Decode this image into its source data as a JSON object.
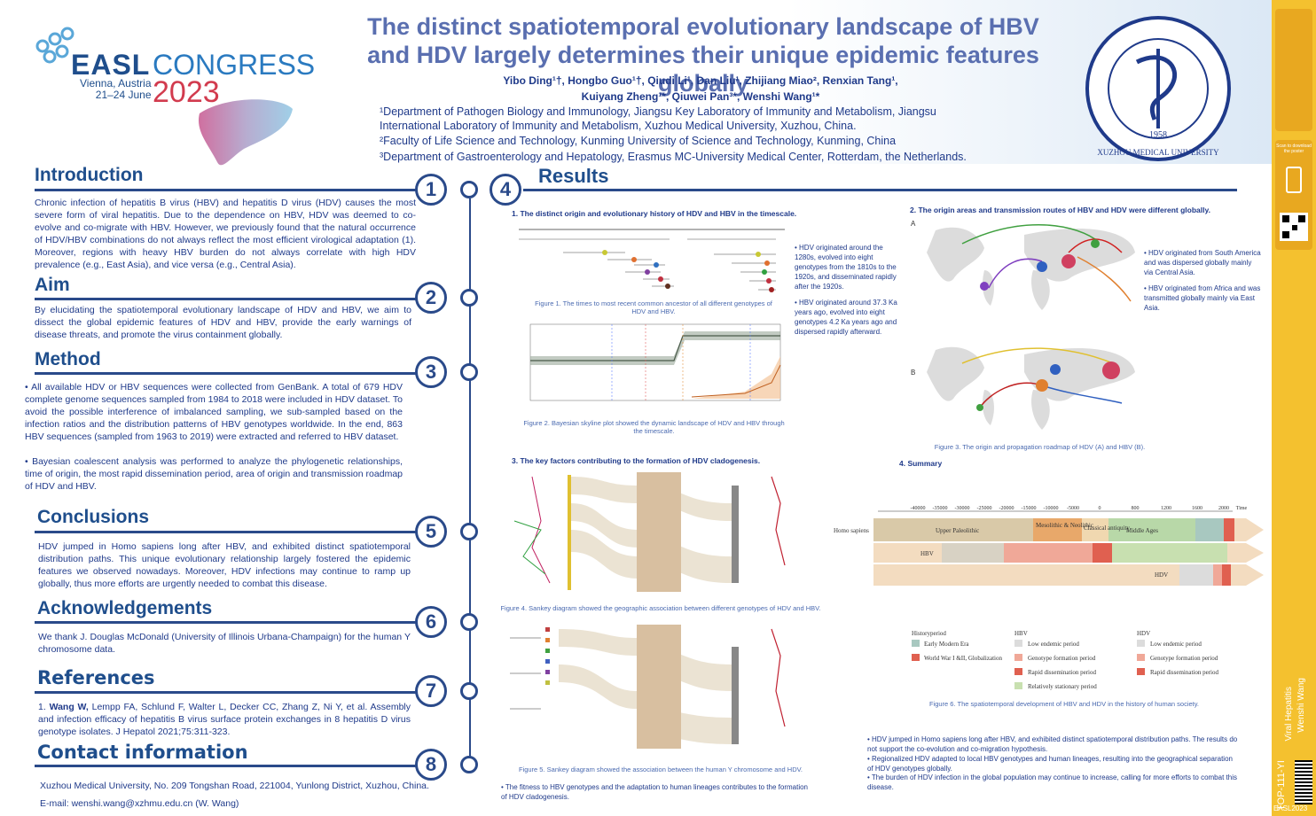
{
  "header": {
    "title": "The distinct spatiotemporal evolutionary landscape of HBV and HDV largely determines their unique epidemic features globally",
    "authors_line1": "Yibo Ding¹†, Hongbo Guo¹†, Qiudi Li¹, Dan Liu¹, Zhijiang Miao², Renxian Tang¹,",
    "authors_line2": "Kuiyang Zheng¹*, Qiuwei Pan³*, Wenshi Wang¹*",
    "affil1": "¹Department of Pathogen Biology and Immunology, Jiangsu Key Laboratory of Immunity and Metabolism, Jiangsu International Laboratory of Immunity and Metabolism, Xuzhou Medical University, Xuzhou, China.",
    "affil2": "²Faculty of Life Science and Technology, Kunming University of Science and Technology, Kunming, China",
    "affil3": "³Department of Gastroenterology and Hepatology, Erasmus MC-University Medical Center, Rotterdam, the Netherlands."
  },
  "logo": {
    "easl": "EASL",
    "congress": "CONGRESS",
    "city": "Vienna, Austria",
    "dates": "21–24 June",
    "year": "2023",
    "seal_text": "XUZHOU MEDICAL UNIVERSITY",
    "seal_year": "1958"
  },
  "sections": {
    "introduction": {
      "title": "Introduction",
      "number": "1",
      "text": "Chronic infection of hepatitis B virus (HBV) and hepatitis D virus (HDV) causes the most severe form of viral hepatitis. Due to the dependence on HBV, HDV was deemed to co-evolve and co-migrate with HBV. However, we previously found that the natural occurrence of HDV/HBV combinations do not always reflect the most efficient virological adaptation (1). Moreover, regions with heavy HBV burden do not always correlate with high HDV prevalence (e.g., East Asia), and vice versa (e.g., Central Asia)."
    },
    "aim": {
      "title": "Aim",
      "number": "2",
      "text": "By elucidating the spatiotemporal evolutionary landscape of HDV and HBV, we aim to dissect the global epidemic features of HDV and HBV, provide the early warnings of disease threats, and promote the virus containment globally."
    },
    "method": {
      "title": "Method",
      "number": "3",
      "bullet1": "All available HDV or HBV sequences were collected from GenBank. A total of 679 HDV complete genome sequences sampled from 1984 to 2018 were included in HDV dataset. To avoid the possible interference of imbalanced sampling, we sub-sampled based on the infection ratios and the distribution patterns of HBV genotypes worldwide. In the end, 863 HBV sequences (sampled from 1963 to 2019) were extracted and referred to HBV dataset.",
      "bullet2": "Bayesian coalescent analysis was performed to analyze the phylogenetic relationships, time of origin, the most rapid dissemination period, area of origin and transmission roadmap of HDV and HBV."
    },
    "conclusions": {
      "title": "Conclusions",
      "number": "5",
      "text": "HDV jumped in Homo sapiens long after HBV, and exhibited distinct spatiotemporal distribution paths. This unique evolutionary relationship largely fostered the epidemic features we observed nowadays. Moreover, HDV infections may continue to ramp up globally, thus more efforts are urgently needed to combat this disease."
    },
    "acknowledgements": {
      "title": "Acknowledgements",
      "number": "6",
      "text": "We thank J. Douglas McDonald (University of Illinois Urbana-Champaign) for the human Y chromosome data."
    },
    "references": {
      "title": "References",
      "number": "7",
      "bold": "Wang W,",
      "text": " Lempp FA, Schlund F, Walter L, Decker CC, Zhang Z, Ni Y, et al. Assembly and infection efficacy of hepatitis B virus surface protein exchanges in 8 hepatitis D virus genotype isolates. J Hepatol 2021;75:311-323.",
      "prefix": "1. "
    },
    "contact": {
      "title": "Contact information",
      "number": "8",
      "address": "Xuzhou Medical University, No. 209 Tongshan Road, 221004, Yunlong District, Xuzhou, China.",
      "email": "E-mail: wenshi.wang@xzhmu.edu.cn (W. Wang)"
    },
    "results": {
      "title": "Results",
      "number": "4"
    }
  },
  "results": {
    "fig1_head": "1. The distinct origin and evolutionary history of HDV and HBV in the timescale.",
    "fig1_caption": "Figure 1. The times to most recent common ancestor of all different genotypes of HDV and HBV.",
    "fig2_caption": "Figure 2. Bayesian skyline plot showed the dynamic landscape of HDV and HBV through the timescale.",
    "bullets_left": [
      "HDV originated around the 1280s, evolved into eight genotypes from the 1810s to the 1920s, and disseminated rapidly after the 1920s.",
      "HBV originated around 37.3 Ka years ago, evolved into eight genotypes 4.2 Ka years ago and dispersed rapidly afterward."
    ],
    "fig3_head": "3. The key factors contributing to the formation of HDV cladogenesis.",
    "fig4_caption": "Figure 4. Sankey diagram showed the geographic association between different genotypes of HDV and HBV.",
    "fig5_caption": "Figure 5. Sankey diagram showed the association between the human Y chromosome and HDV.",
    "fig5_bullet": "The fitness to HBV genotypes and the adaptation to human lineages contributes to the formation of HDV cladogenesis.",
    "map_head": "2. The origin areas and transmission routes of HBV and HDV were different globally.",
    "map_bullets": [
      "HDV originated from South America and was dispersed globally mainly via Central Asia.",
      "HBV originated from Africa and was transmitted globally mainly via East Asia."
    ],
    "map_caption": "Figure 3. The origin and propagation roadmap of HDV (A) and  HBV (B).",
    "summary_head": "4. Summary",
    "fig6_caption": "Figure 6. The spatiotemporal development of HBV and HDV in the history of human society.",
    "final_bullets": [
      "HDV jumped in Homo sapiens long after HBV, and exhibited distinct spatiotemporal distribution paths. The results do not support the co-evolution and co-migration hypothesis.",
      "Regionalized HDV adapted to local HBV genotypes and human lineages, resulting into the geographical separation of HDV genotypes globally.",
      "The burden of HDV infection in the global population may continue to increase, calling for more efforts to combat this disease."
    ]
  },
  "summary_fig": {
    "rows": [
      "Homo sapiens",
      "HBV",
      "HDV"
    ],
    "periods": [
      "Upper Paleolithic",
      "Mesolithic & Neolithic",
      "Classical antiquity",
      "Middle Ages"
    ],
    "axis": [
      "-40000",
      "-35000",
      "-30000",
      "-25000",
      "-20000",
      "-15000",
      "-10000",
      "-5000",
      "0",
      "800",
      "1200",
      "1600",
      "2000"
    ],
    "axis_unit": "Time",
    "legend_history": "Historyperiod",
    "legend_h1": "Early Modern Era",
    "legend_h2": "World War I &II, Globalization",
    "legend_hbv": "HBV",
    "legend_hdv": "HDV",
    "legend_items": [
      "Low endemic period",
      "Genotype formation period",
      "Rapid dissemination period",
      "Relatively stationary period"
    ],
    "circ_marks": [
      "①",
      "②",
      "③",
      "④"
    ]
  },
  "strip": {
    "vertical1": "Viral Hepatitis",
    "vertical2": "Wenshi Wang",
    "code": "TOP-111-YI",
    "footer": "EASL2023",
    "scan": "Scan to download the poster"
  },
  "colors": {
    "navy": "#1f4e8c",
    "gold": "#f4c12f",
    "red": "#d23b4e",
    "title": "#5a6fb0"
  }
}
